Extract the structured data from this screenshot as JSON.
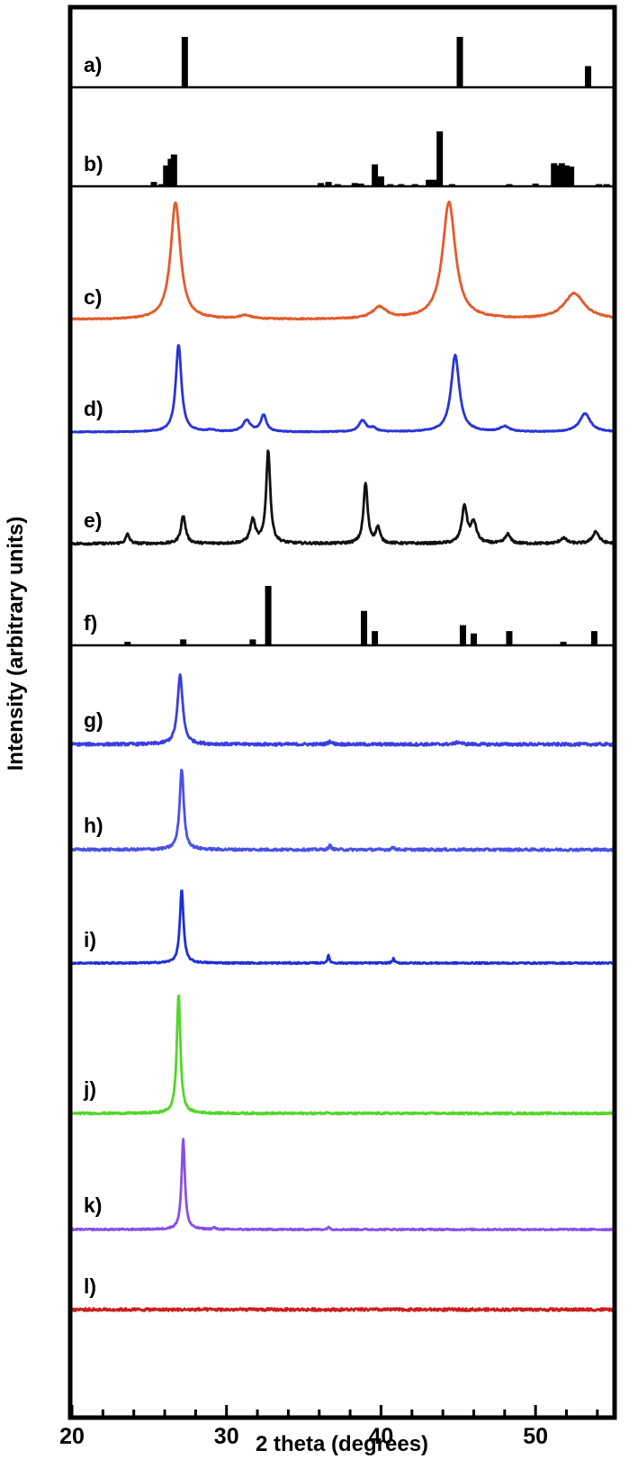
{
  "chart_data": {
    "type": "line",
    "xlabel": "2 theta (degrees)",
    "ylabel": "Intensity (arbitrary units)",
    "xlim": [
      20,
      55
    ],
    "x_ticks": [
      "20",
      "30",
      "40",
      "50"
    ],
    "panels": [
      {
        "label": "a)",
        "kind": "sticks",
        "color": "#000000",
        "sticks": [
          [
            27.3,
            1.0
          ],
          [
            45.1,
            1.0
          ],
          [
            53.4,
            0.42
          ]
        ]
      },
      {
        "label": "b)",
        "kind": "sticks",
        "color": "#000000",
        "sticks": [
          [
            25.3,
            0.08
          ],
          [
            25.8,
            0.04
          ],
          [
            26.1,
            0.38
          ],
          [
            26.4,
            0.5
          ],
          [
            26.6,
            0.58
          ],
          [
            36.1,
            0.06
          ],
          [
            36.6,
            0.08
          ],
          [
            37.2,
            0.04
          ],
          [
            38.3,
            0.06
          ],
          [
            38.7,
            0.05
          ],
          [
            39.6,
            0.4
          ],
          [
            40.0,
            0.18
          ],
          [
            40.6,
            0.04
          ],
          [
            41.3,
            0.04
          ],
          [
            42.2,
            0.04
          ],
          [
            43.1,
            0.12
          ],
          [
            43.5,
            0.12
          ],
          [
            43.8,
            1.0
          ],
          [
            44.6,
            0.04
          ],
          [
            48.3,
            0.04
          ],
          [
            50.0,
            0.05
          ],
          [
            51.2,
            0.42
          ],
          [
            51.5,
            0.38
          ],
          [
            51.7,
            0.42
          ],
          [
            52.0,
            0.38
          ],
          [
            52.3,
            0.36
          ],
          [
            54.1,
            0.04
          ],
          [
            54.6,
            0.04
          ]
        ]
      },
      {
        "label": "c)",
        "kind": "pattern",
        "color": "#e35a2c",
        "noise": 0.005,
        "peaks": [
          [
            26.7,
            1.0,
            0.38
          ],
          [
            31.2,
            0.03,
            0.5
          ],
          [
            39.9,
            0.1,
            0.55
          ],
          [
            44.4,
            1.0,
            0.5
          ],
          [
            52.5,
            0.22,
            0.8
          ]
        ]
      },
      {
        "label": "d)",
        "kind": "pattern",
        "color": "#2934d6",
        "noise": 0.005,
        "peaks": [
          [
            26.9,
            1.0,
            0.22
          ],
          [
            29.0,
            0.02,
            0.3
          ],
          [
            31.3,
            0.13,
            0.3
          ],
          [
            32.4,
            0.19,
            0.22
          ],
          [
            38.8,
            0.13,
            0.28
          ],
          [
            39.5,
            0.04,
            0.25
          ],
          [
            44.8,
            0.88,
            0.32
          ],
          [
            48.0,
            0.06,
            0.35
          ],
          [
            53.2,
            0.21,
            0.42
          ]
        ]
      },
      {
        "label": "e)",
        "kind": "pattern",
        "color": "#111111",
        "noise": 0.012,
        "peaks": [
          [
            23.6,
            0.1,
            0.15
          ],
          [
            27.2,
            0.3,
            0.18
          ],
          [
            31.7,
            0.25,
            0.2
          ],
          [
            32.7,
            1.0,
            0.16
          ],
          [
            39.0,
            0.65,
            0.16
          ],
          [
            39.8,
            0.17,
            0.16
          ],
          [
            45.4,
            0.4,
            0.2
          ],
          [
            46.0,
            0.22,
            0.22
          ],
          [
            48.2,
            0.1,
            0.2
          ],
          [
            51.8,
            0.06,
            0.25
          ],
          [
            53.9,
            0.13,
            0.25
          ]
        ]
      },
      {
        "label": "f)",
        "kind": "sticks",
        "color": "#000000",
        "sticks": [
          [
            23.6,
            0.06
          ],
          [
            27.2,
            0.1
          ],
          [
            31.7,
            0.1
          ],
          [
            32.7,
            1.0
          ],
          [
            38.9,
            0.58
          ],
          [
            39.6,
            0.24
          ],
          [
            45.3,
            0.34
          ],
          [
            46.0,
            0.2
          ],
          [
            48.3,
            0.24
          ],
          [
            51.8,
            0.06
          ],
          [
            53.8,
            0.24
          ]
        ]
      },
      {
        "label": "g)",
        "kind": "pattern",
        "color": "#3b3fe0",
        "noise": 0.02,
        "peaks": [
          [
            27.0,
            1.0,
            0.2
          ],
          [
            36.7,
            0.04,
            0.15
          ],
          [
            45.0,
            0.03,
            0.25
          ]
        ]
      },
      {
        "label": "h)",
        "kind": "pattern",
        "color": "#4a51e6",
        "noise": 0.015,
        "peaks": [
          [
            27.1,
            1.0,
            0.16
          ],
          [
            36.7,
            0.05,
            0.1
          ],
          [
            40.8,
            0.03,
            0.1
          ]
        ]
      },
      {
        "label": "i)",
        "kind": "pattern",
        "color": "#1f2fd6",
        "noise": 0.01,
        "peaks": [
          [
            27.1,
            1.0,
            0.14
          ],
          [
            36.6,
            0.1,
            0.08
          ],
          [
            40.8,
            0.06,
            0.08
          ]
        ]
      },
      {
        "label": "j)",
        "kind": "pattern",
        "color": "#53d62b",
        "noise": 0.008,
        "peaks": [
          [
            26.9,
            1.0,
            0.14
          ],
          [
            36.6,
            0.01,
            0.1
          ]
        ]
      },
      {
        "label": "k)",
        "kind": "pattern",
        "color": "#8a4fe6",
        "noise": 0.008,
        "peaks": [
          [
            27.2,
            1.0,
            0.13
          ],
          [
            29.2,
            0.02,
            0.1
          ],
          [
            36.6,
            0.03,
            0.08
          ]
        ]
      },
      {
        "label": "l)",
        "kind": "pattern",
        "color": "#cc1f1f",
        "noise": 0.02,
        "peaks": []
      }
    ]
  }
}
